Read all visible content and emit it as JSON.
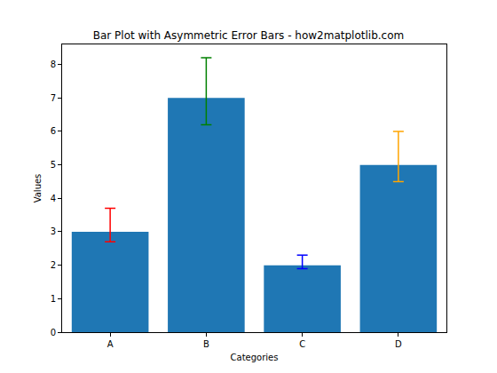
{
  "chart_data": {
    "type": "bar",
    "title": "Bar Plot with Asymmetric Error Bars - how2matplotlib.com",
    "x_label": "Categories",
    "y_label": "Values",
    "categories": [
      "A",
      "B",
      "C",
      "D"
    ],
    "values": [
      3,
      7,
      2,
      5
    ],
    "color": "#1f77b4",
    "errors": {
      "lower": [
        0.3,
        0.8,
        0.1,
        0.5
      ],
      "upper": [
        0.7,
        1.2,
        0.3,
        1.0
      ],
      "colors": [
        "red",
        "green",
        "blue",
        "orange"
      ]
    },
    "ylim": [
      0,
      8.6
    ],
    "yticks": [
      0,
      1,
      2,
      3,
      4,
      5,
      6,
      7,
      8
    ],
    "grid": false
  }
}
